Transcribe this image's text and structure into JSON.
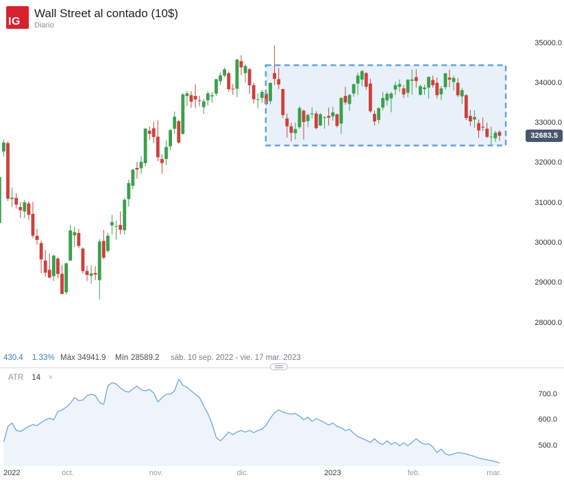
{
  "header": {
    "logo_text": "IG",
    "brand_color": "#d6232e",
    "title": "Wall Street al contado (10$)",
    "timeframe": "Diario"
  },
  "price_axis": {
    "values": [
      35000,
      34000,
      33000,
      32000,
      31000,
      30000,
      29000,
      28000
    ],
    "labels": [
      "35000.0",
      "34000.0",
      "33000.0",
      "32000.0",
      "31000.0",
      "30000.0",
      "29000.0",
      "28000.0"
    ],
    "current_price": "32683.5",
    "badge_color": "#46566e"
  },
  "stats_bar": {
    "change": "430.4",
    "change_pct": "1.33%",
    "max_label": "Máx",
    "max_value": "34941.9",
    "min_label": "Mín",
    "min_value": "28589.2",
    "date_range": "sáb. 10 sep. 2022 - vie. 17 mar. 2023"
  },
  "indicator": {
    "name": "ATR",
    "period": "14",
    "close_icon": "×",
    "axis_values": [
      700,
      600,
      500
    ],
    "axis_labels": [
      "700.0",
      "600.0",
      "500.0"
    ]
  },
  "time_axis": {
    "labels": [
      {
        "text": "2022",
        "index": 0,
        "strong": true
      },
      {
        "text": "oct.",
        "index": 14,
        "strong": false
      },
      {
        "text": "nov.",
        "index": 35,
        "strong": false
      },
      {
        "text": "dic.",
        "index": 56,
        "strong": false
      },
      {
        "text": "2023",
        "index": 77,
        "strong": true
      },
      {
        "text": "feb.",
        "index": 97,
        "strong": false
      },
      {
        "text": "mar.",
        "index": 116,
        "strong": false
      }
    ]
  },
  "chart_data": {
    "type": "candlestick",
    "title": "Wall Street al contado (10$)",
    "timeframe": "Diario",
    "date_range": "2022-09-10 to 2023-03-17",
    "max": 34941.9,
    "min": 28589.2,
    "last": 32683.5,
    "up_color": "#3aa04a",
    "down_color": "#ce403b",
    "y_axis_range": [
      27700,
      35250
    ],
    "left_partial_candle": [
      30500,
      31700,
      30450,
      31650
    ],
    "candles": [
      [
        32290,
        32590,
        32160,
        32515
      ],
      [
        32500,
        32550,
        31050,
        31110
      ],
      [
        31100,
        31390,
        30900,
        31135
      ],
      [
        31130,
        31250,
        30860,
        30960
      ],
      [
        30900,
        31020,
        30630,
        30820
      ],
      [
        30790,
        31080,
        30620,
        31020
      ],
      [
        30990,
        31050,
        30580,
        30706
      ],
      [
        30730,
        31030,
        30120,
        30184
      ],
      [
        30180,
        30350,
        29960,
        30077
      ],
      [
        30000,
        30060,
        29250,
        29590
      ],
      [
        29560,
        29820,
        29160,
        29260
      ],
      [
        29330,
        29740,
        29120,
        29135
      ],
      [
        29170,
        29710,
        29050,
        29684
      ],
      [
        29610,
        29650,
        29120,
        29225
      ],
      [
        29230,
        29450,
        28715,
        28725
      ],
      [
        28770,
        29510,
        28710,
        29490
      ],
      [
        29560,
        30460,
        29550,
        30316
      ],
      [
        30190,
        30400,
        29900,
        30273
      ],
      [
        30250,
        30350,
        29870,
        29926
      ],
      [
        29860,
        29890,
        29240,
        29296
      ],
      [
        29300,
        29430,
        29050,
        29202
      ],
      [
        29180,
        29440,
        28980,
        29239
      ],
      [
        29250,
        29420,
        29070,
        29210
      ],
      [
        29070,
        30100,
        28589.2,
        30038
      ],
      [
        30050,
        30330,
        29590,
        29634
      ],
      [
        29800,
        30250,
        29760,
        30185
      ],
      [
        30440,
        30700,
        30210,
        30523
      ],
      [
        30420,
        30560,
        30080,
        30423
      ],
      [
        30450,
        30790,
        30220,
        30333
      ],
      [
        30320,
        31120,
        30210,
        31082
      ],
      [
        31100,
        31580,
        30910,
        31499
      ],
      [
        31430,
        31860,
        31350,
        31836
      ],
      [
        31880,
        32030,
        31610,
        31839
      ],
      [
        31870,
        32170,
        31730,
        32033
      ],
      [
        32000,
        32880,
        31920,
        32861
      ],
      [
        32810,
        32920,
        32570,
        32732
      ],
      [
        32870,
        33040,
        32500,
        32653
      ],
      [
        32660,
        33070,
        32050,
        32147
      ],
      [
        32100,
        32220,
        31730,
        32001
      ],
      [
        32100,
        32570,
        31950,
        32403
      ],
      [
        32420,
        32850,
        32320,
        32827
      ],
      [
        32860,
        33290,
        32730,
        33160
      ],
      [
        33050,
        33090,
        32490,
        32513
      ],
      [
        32730,
        33760,
        32720,
        33715
      ],
      [
        33680,
        33810,
        33430,
        33747
      ],
      [
        33700,
        33800,
        33380,
        33536
      ],
      [
        33680,
        33970,
        33370,
        33592
      ],
      [
        33570,
        33680,
        33420,
        33553
      ],
      [
        33400,
        33600,
        33230,
        33546
      ],
      [
        33570,
        33800,
        33440,
        33745
      ],
      [
        33670,
        33780,
        33510,
        33700
      ],
      [
        33740,
        34110,
        33680,
        34098
      ],
      [
        34050,
        34270,
        33960,
        34194
      ],
      [
        34190,
        34390,
        34150,
        34347
      ],
      [
        34250,
        34280,
        33790,
        33849
      ],
      [
        33860,
        33980,
        33710,
        33852
      ],
      [
        33860,
        34600,
        33650,
        34590
      ],
      [
        34550,
        34700,
        34200,
        34395
      ],
      [
        34250,
        34470,
        34020,
        34429
      ],
      [
        34350,
        34380,
        33730,
        33947
      ],
      [
        33950,
        34010,
        33490,
        33596
      ],
      [
        33590,
        33750,
        33370,
        33597
      ],
      [
        33630,
        33830,
        33510,
        33781
      ],
      [
        33740,
        33840,
        33440,
        33476
      ],
      [
        33550,
        34020,
        33470,
        34005
      ],
      [
        34250,
        34941.9,
        33950,
        34108
      ],
      [
        34100,
        34380,
        33850,
        33966
      ],
      [
        33850,
        33870,
        33130,
        33202
      ],
      [
        33120,
        33240,
        32640,
        32920
      ],
      [
        32920,
        33010,
        32540,
        32757
      ],
      [
        32750,
        33010,
        32590,
        32849
      ],
      [
        32900,
        33430,
        32860,
        33376
      ],
      [
        33310,
        33340,
        32590,
        33027
      ],
      [
        33050,
        33240,
        32900,
        33204
      ],
      [
        33220,
        33400,
        33120,
        33241
      ],
      [
        33240,
        33300,
        32840,
        32875
      ],
      [
        32940,
        33250,
        32930,
        33220
      ],
      [
        33130,
        33170,
        32860,
        33147
      ],
      [
        33180,
        33390,
        32940,
        33136
      ],
      [
        33170,
        33410,
        33060,
        33269
      ],
      [
        33220,
        33240,
        32890,
        32930
      ],
      [
        32990,
        33650,
        32730,
        33630
      ],
      [
        33680,
        33910,
        33460,
        33517
      ],
      [
        33480,
        33730,
        33310,
        33704
      ],
      [
        33740,
        33990,
        33660,
        33973
      ],
      [
        33990,
        34260,
        33700,
        34189
      ],
      [
        34090,
        34330,
        33920,
        34302
      ],
      [
        34250,
        34280,
        33840,
        33910
      ],
      [
        33990,
        34110,
        33260,
        33296
      ],
      [
        33230,
        33310,
        32940,
        33044
      ],
      [
        33080,
        33390,
        32990,
        33375
      ],
      [
        33390,
        33780,
        33320,
        33629
      ],
      [
        33570,
        33790,
        33440,
        33733
      ],
      [
        33620,
        33780,
        33270,
        33743
      ],
      [
        33840,
        34040,
        33700,
        33949
      ],
      [
        33910,
        34090,
        33780,
        33978
      ],
      [
        33870,
        33950,
        33630,
        33717
      ],
      [
        33760,
        34100,
        33650,
        34086
      ],
      [
        34060,
        34340,
        33710,
        34092
      ],
      [
        34150,
        34350,
        33890,
        34053
      ],
      [
        33710,
        33960,
        33690,
        33926
      ],
      [
        33850,
        33960,
        33710,
        33891
      ],
      [
        33890,
        34170,
        33610,
        34156
      ],
      [
        34080,
        34190,
        33890,
        33949
      ],
      [
        34010,
        34140,
        33620,
        33699
      ],
      [
        33720,
        33930,
        33580,
        33869
      ],
      [
        33900,
        34260,
        33840,
        34245
      ],
      [
        34140,
        34340,
        33900,
        34089
      ],
      [
        34030,
        34190,
        33820,
        34128
      ],
      [
        34010,
        34130,
        33650,
        33696
      ],
      [
        33670,
        33880,
        33480,
        33826
      ],
      [
        33700,
        33720,
        33080,
        33129
      ],
      [
        33180,
        33330,
        32930,
        33045
      ],
      [
        33090,
        33320,
        32880,
        33153
      ],
      [
        33000,
        33090,
        32630,
        32816
      ],
      [
        32910,
        33140,
        32800,
        32889
      ],
      [
        32860,
        33010,
        32630,
        32656
      ],
      [
        32660,
        32910,
        32450,
        32661
      ],
      [
        32620,
        32810,
        32530,
        32760
      ],
      [
        32780,
        32820,
        32560,
        32683.5
      ]
    ],
    "annotations": {
      "dashed_box": {
        "start_index": 63.3,
        "end_index": 120.9,
        "price_top": 34450,
        "price_bottom": 32440,
        "stroke": "#69a3d9",
        "fill": "rgba(115,165,218,0.16)"
      }
    },
    "indicator_series": {
      "name": "ATR",
      "period": 14,
      "line_color": "#6fa6d9",
      "fill_color": "#eef4fa",
      "axis_range": [
        420,
        780
      ],
      "values": [
        515,
        575,
        588,
        560,
        555,
        565,
        575,
        582,
        578,
        590,
        600,
        607,
        600,
        633,
        639,
        650,
        665,
        687,
        675,
        678,
        695,
        700,
        695,
        668,
        660,
        732,
        745,
        740,
        725,
        713,
        708,
        721,
        732,
        718,
        713,
        719,
        705,
        670,
        687,
        700,
        700,
        713,
        759,
        735,
        727,
        713,
        700,
        687,
        655,
        625,
        585,
        532,
        519,
        535,
        553,
        543,
        553,
        559,
        553,
        559,
        551,
        559,
        565,
        580,
        607,
        628,
        639,
        631,
        625,
        623,
        625,
        615,
        601,
        611,
        595,
        605,
        598,
        590,
        580,
        588,
        575,
        570,
        559,
        564,
        548,
        535,
        528,
        521,
        513,
        527,
        511,
        505,
        519,
        505,
        513,
        500,
        511,
        500,
        513,
        527,
        513,
        505,
        508,
        495,
        473,
        487,
        468,
        463,
        468,
        473,
        471,
        468,
        463,
        458,
        452,
        448,
        445,
        442,
        438,
        433
      ]
    }
  }
}
